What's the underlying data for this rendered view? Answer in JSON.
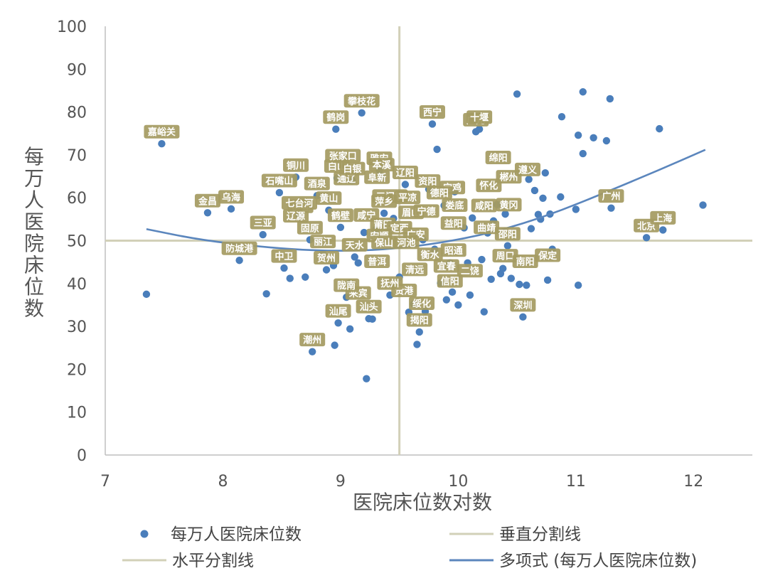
{
  "chart_data": {
    "type": "scatter",
    "xlabel": "医院床位数对数",
    "ylabel": "每万人医院床位数",
    "xlim": [
      7,
      12.5
    ],
    "ylim": [
      0,
      100
    ],
    "x_ticks": [
      "7",
      "8",
      "9",
      "10",
      "11",
      "12"
    ],
    "y_ticks": [
      "0",
      "10",
      "20",
      "30",
      "40",
      "50",
      "60",
      "70",
      "80",
      "90",
      "100"
    ],
    "vertical_split_x": 9.5,
    "horizontal_split_y": 50,
    "grid": false,
    "legend_position": "bottom",
    "colors": {
      "points": "#4a7ebb",
      "trend": "#5b86bd",
      "split_lines": "#d2d0b8",
      "label_bg": "#a59b62",
      "axis": "#bfbfbf"
    },
    "legend": {
      "scatter": "每万人医院床位数",
      "vertical_split": "垂直分割线",
      "horizontal_split": "水平分割线",
      "trend": "多项式 (每万人医院床位数)"
    },
    "trendline": {
      "type": "polynomial",
      "points": [
        [
          7.35,
          52.7
        ],
        [
          7.8,
          50.2
        ],
        [
          8.3,
          48.6
        ],
        [
          8.8,
          47.6
        ],
        [
          9.3,
          47.7
        ],
        [
          9.8,
          49.2
        ],
        [
          10.3,
          51.9
        ],
        [
          10.8,
          56.2
        ],
        [
          11.3,
          61.8
        ],
        [
          11.7,
          66.4
        ],
        [
          12.1,
          71.2
        ]
      ]
    },
    "series": [
      {
        "name": "每万人医院床位数",
        "points": [
          {
            "x": 7.35,
            "y": 37.5
          },
          {
            "x": 7.48,
            "y": 72.6,
            "label": "嘉峪关"
          },
          {
            "x": 7.87,
            "y": 56.5,
            "label": "金昌"
          },
          {
            "x": 8.07,
            "y": 57.4,
            "label": "乌海"
          },
          {
            "x": 8.14,
            "y": 45.4,
            "label": "防城港"
          },
          {
            "x": 8.34,
            "y": 51.4,
            "label": "三亚"
          },
          {
            "x": 8.37,
            "y": 37.6
          },
          {
            "x": 8.48,
            "y": 61.2,
            "label": "石嘴山"
          },
          {
            "x": 8.52,
            "y": 43.6,
            "label": "中卫"
          },
          {
            "x": 8.57,
            "y": 41.2
          },
          {
            "x": 8.62,
            "y": 64.8,
            "label": "铜川"
          },
          {
            "x": 8.65,
            "y": 56.0,
            "label": "七台河"
          },
          {
            "x": 8.7,
            "y": 41.5
          },
          {
            "x": 8.74,
            "y": 50.2,
            "label": "固原"
          },
          {
            "x": 8.76,
            "y": 24.1,
            "label": "潮州"
          },
          {
            "x": 8.8,
            "y": 60.5,
            "label": "酒泉"
          },
          {
            "x": 8.85,
            "y": 47.0,
            "label": "丽江"
          },
          {
            "x": 8.88,
            "y": 43.2,
            "label": "贺州"
          },
          {
            "x": 8.9,
            "y": 57.1,
            "label": "黄山"
          },
          {
            "x": 8.94,
            "y": 44.2
          },
          {
            "x": 8.95,
            "y": 25.6
          },
          {
            "x": 8.96,
            "y": 76.0,
            "label": "鹤岗"
          },
          {
            "x": 8.97,
            "y": 64.6,
            "label": "白山"
          },
          {
            "x": 8.98,
            "y": 30.8,
            "label": "汕尾"
          },
          {
            "x": 9.0,
            "y": 53.1,
            "label": "鹤壁"
          },
          {
            "x": 9.02,
            "y": 67.0,
            "label": "张家口"
          },
          {
            "x": 9.05,
            "y": 36.8,
            "label": "陇南"
          },
          {
            "x": 9.08,
            "y": 40.1
          },
          {
            "x": 9.08,
            "y": 29.4
          },
          {
            "x": 9.1,
            "y": 64.0,
            "label": "白银"
          },
          {
            "x": 9.12,
            "y": 46.2,
            "label": "天水"
          },
          {
            "x": 9.15,
            "y": 44.8
          },
          {
            "x": 9.18,
            "y": 79.8,
            "label": "攀枝花"
          },
          {
            "x": 9.2,
            "y": 51.9
          },
          {
            "x": 9.22,
            "y": 17.8
          },
          {
            "x": 9.24,
            "y": 31.8,
            "label": "汕头"
          },
          {
            "x": 9.27,
            "y": 31.7
          },
          {
            "x": 9.3,
            "y": 52.6
          },
          {
            "x": 9.33,
            "y": 66.4,
            "label": "雅安"
          },
          {
            "x": 9.35,
            "y": 64.9,
            "label": "本溪"
          },
          {
            "x": 9.37,
            "y": 56.4,
            "label": "萍乡"
          },
          {
            "x": 9.4,
            "y": 60.2
          },
          {
            "x": 9.42,
            "y": 37.3,
            "label": "抚州"
          },
          {
            "x": 9.45,
            "y": 55.2
          },
          {
            "x": 9.5,
            "y": 41.5
          },
          {
            "x": 9.55,
            "y": 63.1,
            "label": "辽阳"
          },
          {
            "x": 9.58,
            "y": 33.3
          },
          {
            "x": 9.62,
            "y": 35.2
          },
          {
            "x": 9.65,
            "y": 25.8
          },
          {
            "x": 9.67,
            "y": 28.7,
            "label": "揭阳"
          },
          {
            "x": 9.7,
            "y": 50.2
          },
          {
            "x": 9.72,
            "y": 33.5
          },
          {
            "x": 9.75,
            "y": 62.0
          },
          {
            "x": 9.78,
            "y": 77.2,
            "label": "西宁"
          },
          {
            "x": 9.8,
            "y": 48.0
          },
          {
            "x": 9.82,
            "y": 71.3
          },
          {
            "x": 9.85,
            "y": 40.1
          },
          {
            "x": 9.88,
            "y": 58.2
          },
          {
            "x": 9.9,
            "y": 36.2
          },
          {
            "x": 9.93,
            "y": 44.8
          },
          {
            "x": 9.95,
            "y": 38.0
          },
          {
            "x": 9.97,
            "y": 61.4
          },
          {
            "x": 10.0,
            "y": 35.0
          },
          {
            "x": 10.05,
            "y": 53.0
          },
          {
            "x": 10.08,
            "y": 44.8
          },
          {
            "x": 10.1,
            "y": 37.3
          },
          {
            "x": 10.12,
            "y": 55.3
          },
          {
            "x": 10.15,
            "y": 75.4,
            "label": "广元"
          },
          {
            "x": 10.18,
            "y": 76.0,
            "label": "十堰"
          },
          {
            "x": 10.2,
            "y": 45.6
          },
          {
            "x": 10.22,
            "y": 33.4
          },
          {
            "x": 10.25,
            "y": 51.8
          },
          {
            "x": 10.28,
            "y": 41.0
          },
          {
            "x": 10.3,
            "y": 54.6
          },
          {
            "x": 10.33,
            "y": 58.4
          },
          {
            "x": 10.36,
            "y": 42.3
          },
          {
            "x": 10.38,
            "y": 43.5
          },
          {
            "x": 10.4,
            "y": 56.2
          },
          {
            "x": 10.42,
            "y": 48.8
          },
          {
            "x": 10.45,
            "y": 41.2
          },
          {
            "x": 10.5,
            "y": 84.2
          },
          {
            "x": 10.52,
            "y": 39.8
          },
          {
            "x": 10.55,
            "y": 32.2,
            "label": "深圳"
          },
          {
            "x": 10.58,
            "y": 39.6
          },
          {
            "x": 10.6,
            "y": 64.3
          },
          {
            "x": 10.62,
            "y": 52.8
          },
          {
            "x": 10.65,
            "y": 61.7
          },
          {
            "x": 10.68,
            "y": 56.1
          },
          {
            "x": 10.7,
            "y": 55.0
          },
          {
            "x": 10.72,
            "y": 59.9
          },
          {
            "x": 10.74,
            "y": 65.8
          },
          {
            "x": 10.76,
            "y": 40.8
          },
          {
            "x": 10.78,
            "y": 56.2
          },
          {
            "x": 10.8,
            "y": 48.0
          },
          {
            "x": 10.87,
            "y": 60.2
          },
          {
            "x": 10.88,
            "y": 78.9
          },
          {
            "x": 11.0,
            "y": 57.3
          },
          {
            "x": 11.02,
            "y": 39.6
          },
          {
            "x": 11.02,
            "y": 74.6
          },
          {
            "x": 11.06,
            "y": 84.7
          },
          {
            "x": 11.06,
            "y": 70.3
          },
          {
            "x": 11.15,
            "y": 74.0
          },
          {
            "x": 11.26,
            "y": 73.3
          },
          {
            "x": 11.3,
            "y": 57.6,
            "label": "广州"
          },
          {
            "x": 11.29,
            "y": 83.1
          },
          {
            "x": 11.6,
            "y": 50.7,
            "label": "北京"
          },
          {
            "x": 11.71,
            "y": 76.1
          },
          {
            "x": 11.74,
            "y": 52.5,
            "label": "上海"
          },
          {
            "x": 12.08,
            "y": 58.3
          }
        ]
      }
    ],
    "annotations": {
      "cluster_labels": [
        {
          "text": "来宾",
          "x": 9.15,
          "y": 37.8
        },
        {
          "text": "通辽",
          "x": 9.05,
          "y": 64.5
        },
        {
          "text": "阜新",
          "x": 9.31,
          "y": 64.8
        },
        {
          "text": "三门峡",
          "x": 9.42,
          "y": 60.4
        },
        {
          "text": "平凉",
          "x": 9.57,
          "y": 60.1
        },
        {
          "text": "眉山",
          "x": 9.6,
          "y": 56.6
        },
        {
          "text": "宁德",
          "x": 9.73,
          "y": 56.9
        },
        {
          "text": "伊春",
          "x": 8.66,
          "y": 58.0
        },
        {
          "text": "辽源",
          "x": 8.62,
          "y": 55.8
        },
        {
          "text": "咸宁",
          "x": 9.22,
          "y": 56.0
        },
        {
          "text": "莆田",
          "x": 9.36,
          "y": 53.8
        },
        {
          "text": "定西",
          "x": 9.5,
          "y": 53.0
        },
        {
          "text": "广安",
          "x": 9.64,
          "y": 51.5
        },
        {
          "text": "安顺",
          "x": 9.33,
          "y": 51.2
        },
        {
          "text": "保山",
          "x": 9.37,
          "y": 49.6
        },
        {
          "text": "河池",
          "x": 9.56,
          "y": 49.6
        },
        {
          "text": "衡水",
          "x": 9.76,
          "y": 46.8
        },
        {
          "text": "昭通",
          "x": 9.96,
          "y": 47.8
        },
        {
          "text": "普洱",
          "x": 9.31,
          "y": 45.2
        },
        {
          "text": "清远",
          "x": 9.63,
          "y": 43.3
        },
        {
          "text": "宜春",
          "x": 9.9,
          "y": 44.1
        },
        {
          "text": "二饶",
          "x": 10.1,
          "y": 43.0
        },
        {
          "text": "信阳",
          "x": 9.93,
          "y": 40.6
        },
        {
          "text": "贵港",
          "x": 9.54,
          "y": 38.4
        },
        {
          "text": "绥化",
          "x": 9.69,
          "y": 35.4
        },
        {
          "text": "宝鸡",
          "x": 9.95,
          "y": 62.4
        },
        {
          "text": "娄底",
          "x": 9.97,
          "y": 58.3
        },
        {
          "text": "咸阳",
          "x": 10.22,
          "y": 58.2
        },
        {
          "text": "资阳",
          "x": 9.74,
          "y": 63.9
        },
        {
          "text": "德阳",
          "x": 9.84,
          "y": 61.2
        },
        {
          "text": "怀化",
          "x": 10.26,
          "y": 62.9
        },
        {
          "text": "绵阳",
          "x": 10.34,
          "y": 69.4
        },
        {
          "text": "郴州",
          "x": 10.43,
          "y": 64.9
        },
        {
          "text": "遵义",
          "x": 10.59,
          "y": 66.6
        },
        {
          "text": "黄冈",
          "x": 10.43,
          "y": 58.4
        },
        {
          "text": "益阳",
          "x": 9.96,
          "y": 54.1
        },
        {
          "text": "曲靖",
          "x": 10.24,
          "y": 53.1
        },
        {
          "text": "邵阳",
          "x": 10.42,
          "y": 51.6
        },
        {
          "text": "周口",
          "x": 10.4,
          "y": 46.5
        },
        {
          "text": "南阳",
          "x": 10.57,
          "y": 45.2
        },
        {
          "text": "保定",
          "x": 10.76,
          "y": 46.6
        }
      ]
    }
  }
}
